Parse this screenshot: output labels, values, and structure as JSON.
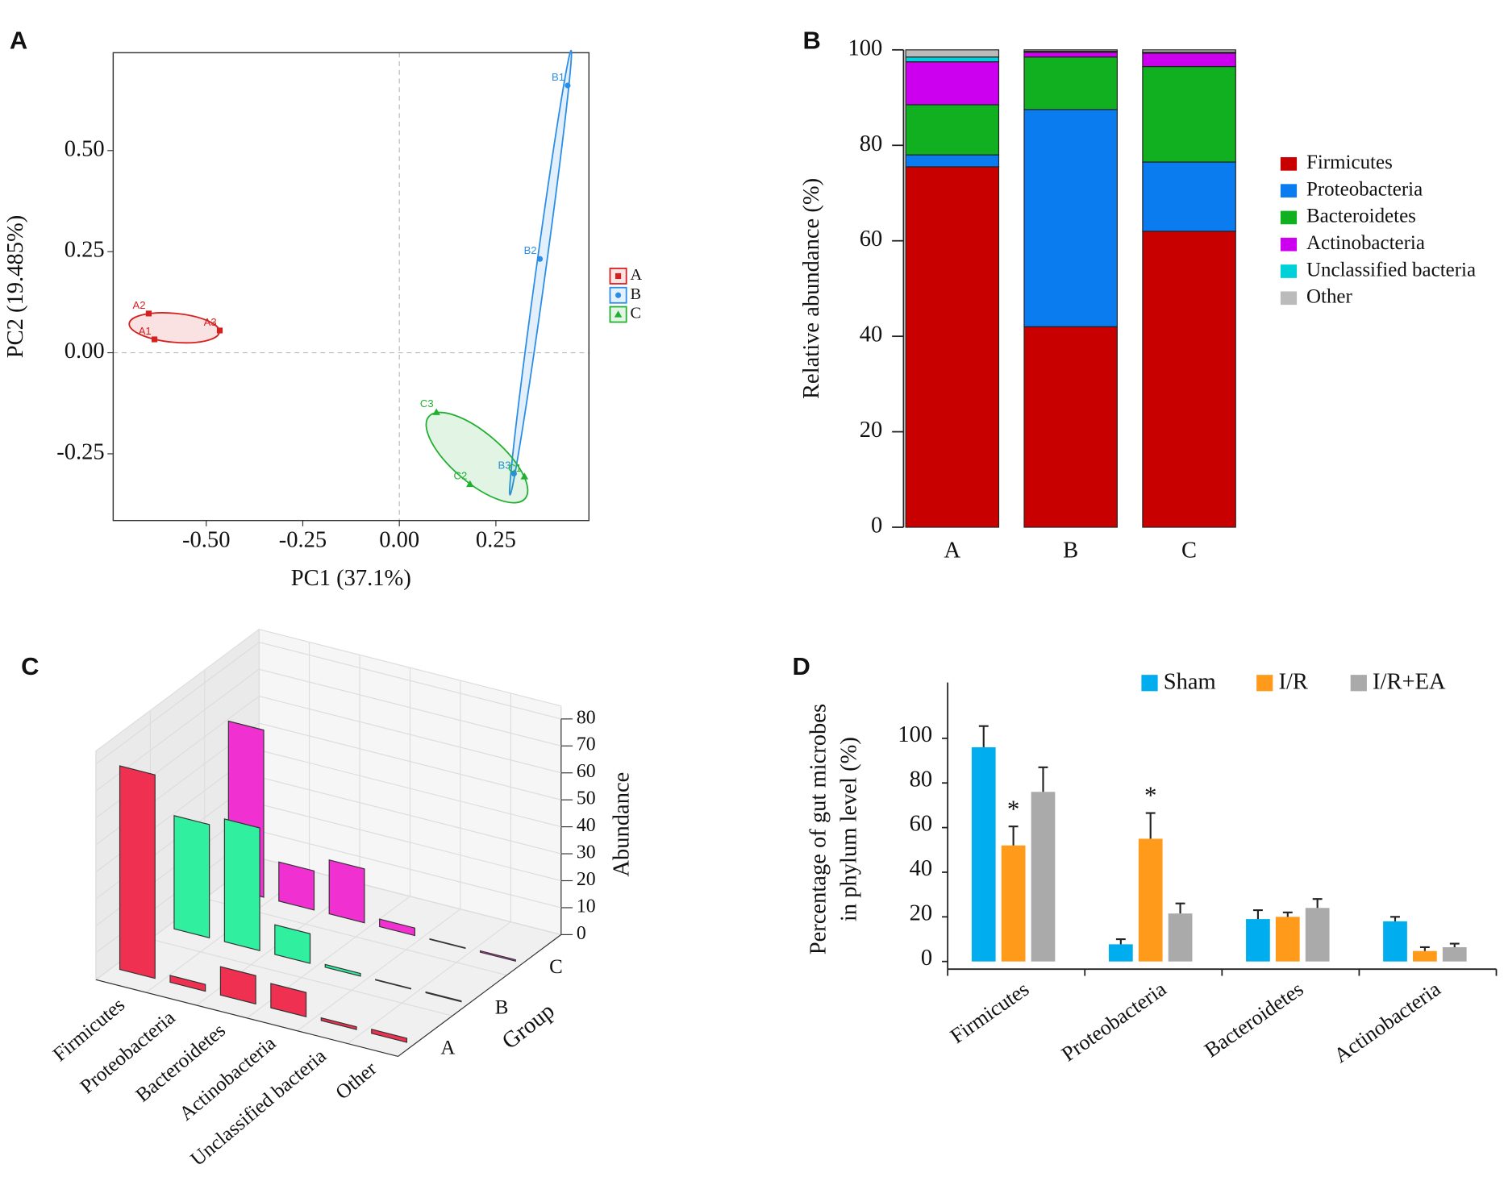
{
  "chart_data": [
    {
      "type": "scatter",
      "panel": "A",
      "xlabel": "PC1 (37.1%)",
      "ylabel": "PC2 (19.485%)",
      "xlim": [
        -0.741,
        0.491
      ],
      "ylim": [
        -0.415,
        0.742
      ],
      "xticks": [
        {
          "value": -0.5,
          "label": "-0.50"
        },
        -0.25,
        {
          "value": 0,
          "label": "0.00"
        },
        0.25
      ],
      "yticks": [
        -0.25,
        {
          "value": 0,
          "label": "0.00"
        },
        0.25,
        {
          "value": 0.5,
          "label": "0.50"
        }
      ],
      "series": [
        {
          "name": "A",
          "color": "#d62020",
          "marker": "square",
          "labels": [
            "A1",
            "A2",
            "A3"
          ],
          "x": [
            -0.634,
            -0.649,
            -0.465
          ],
          "y": [
            0.033,
            0.097,
            0.055
          ]
        },
        {
          "name": "B",
          "color": "#2a8ee8",
          "marker": "circle",
          "labels": [
            "B1",
            "B2",
            "B3"
          ],
          "x": [
            0.436,
            0.364,
            0.297
          ],
          "y": [
            0.661,
            0.232,
            -0.299
          ]
        },
        {
          "name": "C",
          "color": "#22b030",
          "marker": "triangle",
          "labels": [
            "C1",
            "C2",
            "C3"
          ],
          "x": [
            0.324,
            0.183,
            0.096
          ],
          "y": [
            -0.306,
            -0.325,
            -0.147
          ]
        }
      ]
    },
    {
      "type": "stacked_bar",
      "panel": "B",
      "ylabel": "Relative abundance (%)",
      "categories": [
        "A",
        "B",
        "C"
      ],
      "ylim": [
        0,
        100
      ],
      "yticks": [
        0,
        20,
        40,
        60,
        80,
        100
      ],
      "series": [
        {
          "name": "Firmicutes",
          "color": "#c80000",
          "values": [
            75.5,
            42,
            62
          ]
        },
        {
          "name": "Proteobacteria",
          "color": "#0a7cf0",
          "values": [
            2.5,
            45.5,
            14.5
          ]
        },
        {
          "name": "Bacteroidetes",
          "color": "#10b020",
          "values": [
            10.5,
            11,
            20
          ]
        },
        {
          "name": "Actinobacteria",
          "color": "#cc00ee",
          "values": [
            9,
            1,
            2.8
          ]
        },
        {
          "name": "Unclassified bacteria",
          "color": "#00d0d8",
          "values": [
            1,
            0.2,
            0.2
          ]
        },
        {
          "name": "Other",
          "color": "#bbbbbb",
          "values": [
            1.5,
            0.3,
            0.5
          ]
        }
      ]
    },
    {
      "type": "bar3d",
      "panel": "C",
      "zlabel": "Abundance",
      "ylabel": "Group",
      "categories": [
        "Firmicutes",
        "Proteobacteria",
        "Bacteroidetes",
        "Actinobacteria",
        "Unclassified bacteria",
        "Other"
      ],
      "zlim": [
        0,
        80
      ],
      "zticks": [
        0,
        10,
        20,
        30,
        40,
        50,
        60,
        70,
        80
      ],
      "series": [
        {
          "name": "A",
          "color": "#f03050",
          "values": [
            75.5,
            2.5,
            10.5,
            9,
            1,
            1.5
          ]
        },
        {
          "name": "B",
          "color": "#30f0a0",
          "values": [
            42,
            45.5,
            11,
            1,
            0.2,
            0.3
          ]
        },
        {
          "name": "C",
          "color": "#f030d0",
          "values": [
            62,
            14.5,
            20,
            2.8,
            0.2,
            0.5
          ]
        }
      ]
    },
    {
      "type": "bar",
      "panel": "D",
      "ylabel": [
        "Percentage of gut microbes",
        "in phylum level (%)"
      ],
      "categories": [
        "Firmicutes",
        "Proteobacteria",
        "Bacteroidetes",
        "Actinobacteria"
      ],
      "ylim": [
        0,
        125
      ],
      "yticks": [
        0,
        20,
        40,
        60,
        80,
        100
      ],
      "series": [
        {
          "name": "Sham",
          "color": "#00aeef",
          "values": [
            96,
            7.7,
            19,
            18
          ],
          "errors": [
            9.5,
            2.3,
            4,
            2
          ]
        },
        {
          "name": "I/R",
          "color": "#ff9a1a",
          "values": [
            52,
            55,
            20,
            4.7
          ],
          "errors": [
            8.5,
            11.5,
            2,
            1.7
          ]
        },
        {
          "name": "I/R+EA",
          "color": "#aaaaaa",
          "values": [
            76,
            21.5,
            24,
            6.4
          ],
          "errors": [
            11,
            4.5,
            4,
            1.6
          ]
        }
      ],
      "annotations": [
        {
          "text": "*",
          "x": "Firmicutes"
        },
        {
          "text": "*",
          "x": "Proteobacteria"
        }
      ]
    }
  ]
}
